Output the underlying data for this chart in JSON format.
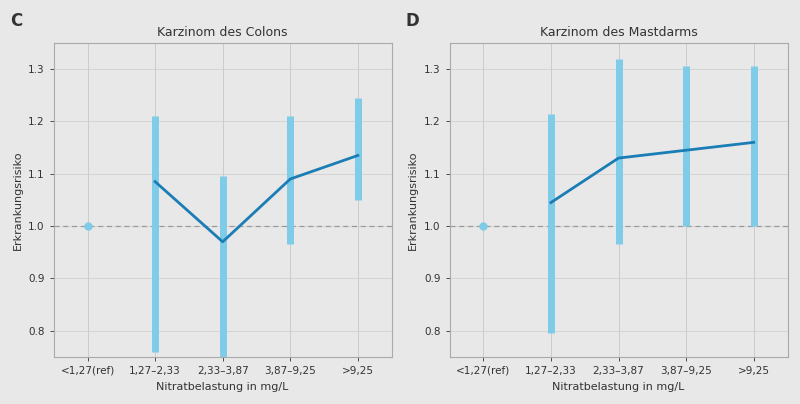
{
  "panel_C": {
    "title": "Karzinom des Colons",
    "label": "C",
    "x_labels": [
      "<1,27(ref)",
      "1,27–2,33",
      "2,33–3,87",
      "3,87–9,25",
      ">9,25"
    ],
    "y_values": [
      1.0,
      1.085,
      0.97,
      1.09,
      1.135
    ],
    "ci_low": [
      1.0,
      0.76,
      0.745,
      0.965,
      1.05
    ],
    "ci_high": [
      1.0,
      1.21,
      1.095,
      1.21,
      1.245
    ]
  },
  "panel_D": {
    "title": "Karzinom des Mastdarms",
    "label": "D",
    "x_labels": [
      "<1,27(ref)",
      "1,27–2,33",
      "2,33–3,87",
      "3,87–9,25",
      ">9,25"
    ],
    "y_values": [
      1.0,
      1.045,
      1.13,
      1.145,
      1.16
    ],
    "ci_low": [
      1.0,
      0.795,
      0.965,
      1.0,
      1.0
    ],
    "ci_high": [
      1.0,
      1.215,
      1.32,
      1.305,
      1.305
    ]
  },
  "ylim": [
    0.75,
    1.35
  ],
  "yticks": [
    0.8,
    0.9,
    1.0,
    1.1,
    1.2,
    1.3
  ],
  "ylabel": "Erkrankungsrisiko",
  "xlabel": "Nitratbelastung in mg/L",
  "line_color": "#1b7db5",
  "ci_color": "#7ecce8",
  "ref_line_color": "#999999",
  "background_color": "#e8e8e8",
  "plot_bg_color": "#e8e8e8",
  "text_color": "#333333",
  "grid_color": "#cccccc",
  "spine_color": "#aaaaaa",
  "title_fontsize": 9,
  "label_fontsize": 12,
  "tick_fontsize": 7.5,
  "axis_label_fontsize": 8
}
